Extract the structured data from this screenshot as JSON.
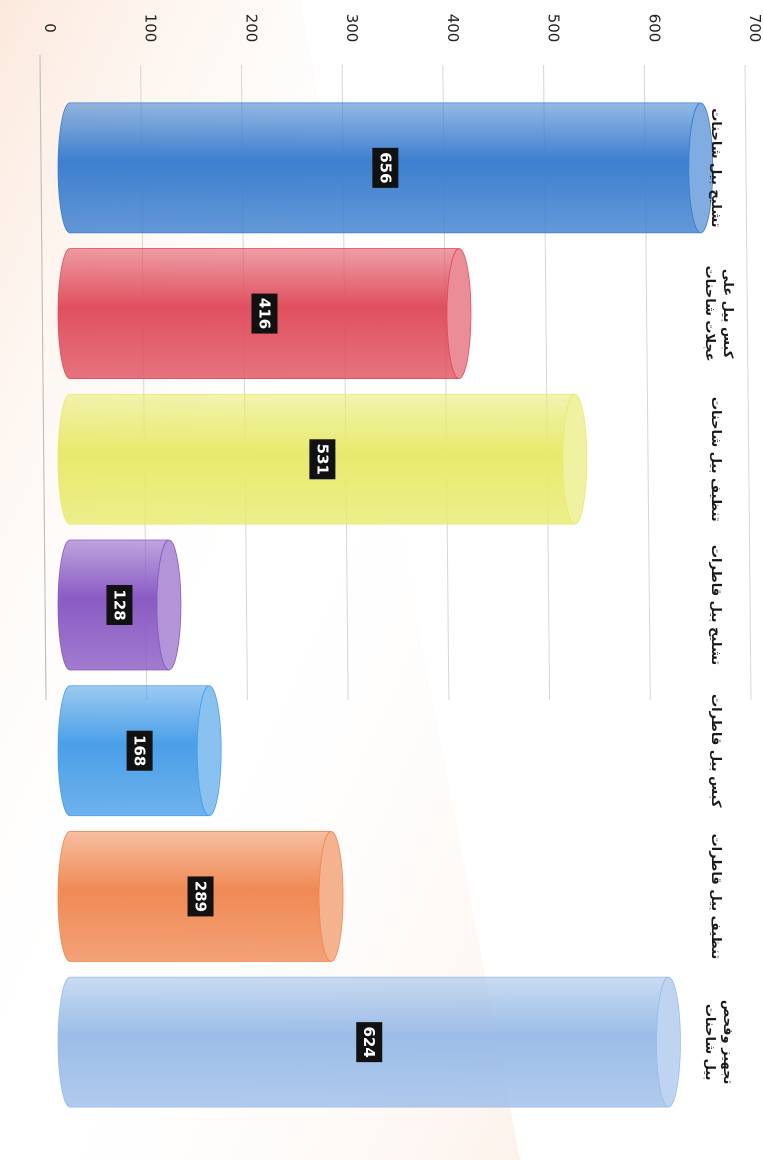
{
  "chart_data": {
    "type": "bar",
    "orientation": "horizontal",
    "style": "3d-cylinder",
    "categories": [
      "تشليح بيل شاحنات",
      "كبس بيل على عجلات شاحنات",
      "تنظيف بيل شاحنات",
      "تشليح بيل قاطرات",
      "كبس بيل قاطرات",
      "تنظيف بيل قاطرات",
      "تجهيز وفحص بيل شاحنات"
    ],
    "values": [
      656,
      416,
      531,
      128,
      168,
      289,
      624
    ],
    "value_labels": [
      "656",
      "416",
      "531",
      "128",
      "168",
      "289",
      "624"
    ],
    "colors": [
      "#3d7fcf",
      "#e0505f",
      "#e8ea6e",
      "#8a5bc4",
      "#4a9fe8",
      "#f08a55",
      "#9cbde8"
    ],
    "ticks": [
      0,
      100,
      200,
      300,
      400,
      500,
      600,
      700
    ],
    "tick_labels": [
      "0",
      "100",
      "200",
      "300",
      "400",
      "500",
      "600",
      "700"
    ],
    "range": [
      0,
      700
    ],
    "grid": true,
    "title": "",
    "xlabel": "",
    "ylabel": ""
  }
}
